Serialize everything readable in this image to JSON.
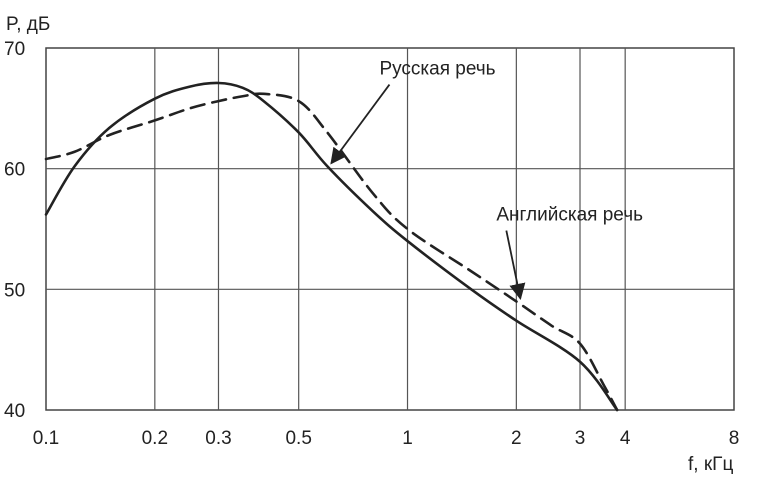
{
  "chart_data": {
    "type": "line",
    "title": "",
    "ylabel": "P, дБ",
    "xlabel": "f, кГц",
    "x_scale": "log",
    "xlim": [
      0.1,
      8
    ],
    "ylim": [
      40,
      70
    ],
    "grid": true,
    "x_ticks": [
      {
        "value": 0.1,
        "label": "0.1"
      },
      {
        "value": 0.2,
        "label": "0.2"
      },
      {
        "value": 0.3,
        "label": "0.3"
      },
      {
        "value": 0.5,
        "label": "0.5"
      },
      {
        "value": 1,
        "label": "1"
      },
      {
        "value": 2,
        "label": "2"
      },
      {
        "value": 3,
        "label": "3"
      },
      {
        "value": 4,
        "label": "4"
      },
      {
        "value": 8,
        "label": "8"
      }
    ],
    "y_ticks": [
      {
        "value": 40,
        "label": "40"
      },
      {
        "value": 50,
        "label": "50"
      },
      {
        "value": 60,
        "label": "60"
      },
      {
        "value": 70,
        "label": "70"
      }
    ],
    "series": [
      {
        "name": "Русская речь",
        "style": "solid",
        "color": "#222222",
        "points": [
          [
            0.1,
            56.2
          ],
          [
            0.12,
            60.2
          ],
          [
            0.15,
            63.4
          ],
          [
            0.2,
            65.8
          ],
          [
            0.25,
            66.8
          ],
          [
            0.3,
            67.1
          ],
          [
            0.35,
            66.7
          ],
          [
            0.4,
            65.6
          ],
          [
            0.5,
            63.0
          ],
          [
            0.6,
            60.2
          ],
          [
            0.8,
            56.5
          ],
          [
            1.0,
            54.0
          ],
          [
            1.5,
            50.0
          ],
          [
            2.0,
            47.4
          ],
          [
            3.0,
            44.0
          ],
          [
            3.8,
            40.0
          ]
        ]
      },
      {
        "name": "Английская речь",
        "style": "dashed",
        "color": "#222222",
        "points": [
          [
            0.1,
            60.8
          ],
          [
            0.12,
            61.4
          ],
          [
            0.15,
            62.8
          ],
          [
            0.2,
            64.0
          ],
          [
            0.25,
            65.0
          ],
          [
            0.3,
            65.6
          ],
          [
            0.35,
            66.0
          ],
          [
            0.4,
            66.2
          ],
          [
            0.5,
            65.6
          ],
          [
            0.6,
            63.0
          ],
          [
            0.8,
            58.0
          ],
          [
            1.0,
            55.0
          ],
          [
            1.5,
            51.5
          ],
          [
            2.0,
            49.0
          ],
          [
            2.5,
            47.0
          ],
          [
            3.0,
            45.5
          ],
          [
            3.5,
            42.0
          ],
          [
            3.8,
            40.0
          ]
        ]
      }
    ],
    "annotations": [
      {
        "text": "Русская речь",
        "target_series": 0,
        "target_x": 0.6,
        "label_x": 0.95,
        "label_y": 67.8
      },
      {
        "text": "Английская речь",
        "target_series": 1,
        "target_x": 2.0,
        "label_x": 2.0,
        "label_y": 55.7
      }
    ]
  }
}
